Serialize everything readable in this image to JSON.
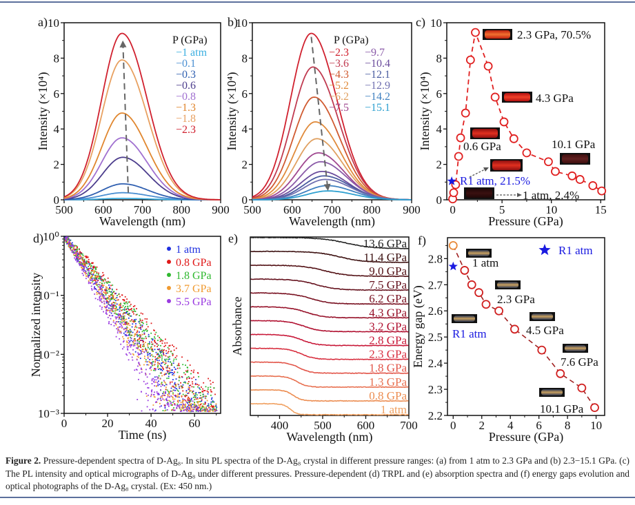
{
  "caption": {
    "label": "Figure 2.",
    "text": "Pressure-dependent spectra of D-Ag₈. In situ PL spectra of the D-Ag₈ crystal in different pressure ranges: (a) from 1 atm to 2.3 GPa and (b) 2.3−15.1 GPa. (c) The PL intensity and optical micrographs of D-Ag₈ under different pressures. Pressure-dependent (d) TRPL and (e) absorption spectra and (f) energy gaps evolution and optical photographs of the D-Ag₈ crystal. (Ex: 450 nm.)"
  },
  "chart_data": [
    {
      "panel": "a)",
      "type": "line",
      "xlabel": "Wavelength (nm)",
      "ylabel": "Intensity (×10⁴)",
      "xlim": [
        500,
        900
      ],
      "ylim": [
        0,
        10
      ],
      "xticks": [
        "500",
        "600",
        "700",
        "800",
        "900"
      ],
      "yticks": [
        "0",
        "2",
        "4",
        "6",
        "8",
        "10"
      ],
      "legend_title": "P (GPa)",
      "legend_position": "top-right",
      "series": [
        {
          "name": "1 atm",
          "color": "#3aaee0",
          "peak_wavelength_nm": 650,
          "peak_intensity": 0.08
        },
        {
          "name": "0.1",
          "color": "#4a8fd2",
          "peak_wavelength_nm": 650,
          "peak_intensity": 0.4
        },
        {
          "name": "0.3",
          "color": "#2f5fb0",
          "peak_wavelength_nm": 650,
          "peak_intensity": 0.9
        },
        {
          "name": "0.6",
          "color": "#4b3c8c",
          "peak_wavelength_nm": 650,
          "peak_intensity": 2.4
        },
        {
          "name": "0.8",
          "color": "#a070d0",
          "peak_wavelength_nm": 648,
          "peak_intensity": 3.5
        },
        {
          "name": "1.3",
          "color": "#e0862e",
          "peak_wavelength_nm": 648,
          "peak_intensity": 4.9
        },
        {
          "name": "1.8",
          "color": "#e8a060",
          "peak_wavelength_nm": 648,
          "peak_intensity": 7.9
        },
        {
          "name": "2.3",
          "color": "#d0202e",
          "peak_wavelength_nm": 648,
          "peak_intensity": 9.4
        }
      ]
    },
    {
      "panel": "b)",
      "type": "line",
      "xlabel": "Wavelength (nm)",
      "ylabel": "Intensity (×10⁴)",
      "xlim": [
        500,
        900
      ],
      "ylim": [
        0,
        10
      ],
      "xticks": [
        "500",
        "600",
        "700",
        "800",
        "900"
      ],
      "yticks": [
        "0",
        "2",
        "4",
        "6",
        "8",
        "10"
      ],
      "legend_title": "P (GPa)",
      "legend_position": "top-right",
      "series": [
        {
          "name": "2.3",
          "color": "#d0202e",
          "peak_wavelength_nm": 648,
          "peak_intensity": 9.4
        },
        {
          "name": "3.6",
          "color": "#c03a50",
          "peak_wavelength_nm": 652,
          "peak_intensity": 7.5
        },
        {
          "name": "4.3",
          "color": "#d05a30",
          "peak_wavelength_nm": 655,
          "peak_intensity": 5.8
        },
        {
          "name": "5.2",
          "color": "#e08a3a",
          "peak_wavelength_nm": 658,
          "peak_intensity": 4.4
        },
        {
          "name": "6.2",
          "color": "#e0a060",
          "peak_wavelength_nm": 662,
          "peak_intensity": 3.45
        },
        {
          "name": "7.5",
          "color": "#a04890",
          "peak_wavelength_nm": 666,
          "peak_intensity": 2.65
        },
        {
          "name": "9.7",
          "color": "#8a5aa8",
          "peak_wavelength_nm": 672,
          "peak_intensity": 2.15
        },
        {
          "name": "10.4",
          "color": "#6a4c9c",
          "peak_wavelength_nm": 675,
          "peak_intensity": 1.6
        },
        {
          "name": "12.1",
          "color": "#4a5ca0",
          "peak_wavelength_nm": 680,
          "peak_intensity": 1.35
        },
        {
          "name": "12.9",
          "color": "#7070b0",
          "peak_wavelength_nm": 683,
          "peak_intensity": 1.15
        },
        {
          "name": "14.2",
          "color": "#3f80c0",
          "peak_wavelength_nm": 688,
          "peak_intensity": 0.8
        },
        {
          "name": "15.1",
          "color": "#2ea0d0",
          "peak_wavelength_nm": 690,
          "peak_intensity": 0.5
        }
      ]
    },
    {
      "panel": "c)",
      "type": "scatter",
      "xlabel": "Pressure (GPa)",
      "ylabel": "Intensity (×10⁴)",
      "xlim": [
        -0.6,
        15.4
      ],
      "ylim": [
        0,
        10
      ],
      "xticks": [
        "0",
        "5",
        "10",
        "15"
      ],
      "yticks": [
        "0",
        "2",
        "4",
        "6",
        "8",
        "10"
      ],
      "color": "#e02020",
      "x": [
        0,
        0.1,
        0.3,
        0.6,
        0.8,
        1.3,
        1.8,
        2.3,
        3.6,
        4.3,
        5.2,
        6.2,
        7.5,
        9.7,
        10.4,
        12.1,
        12.9,
        14.2,
        15.1
      ],
      "y": [
        0.05,
        0.4,
        0.85,
        2.45,
        3.5,
        4.9,
        7.9,
        9.45,
        7.55,
        5.8,
        4.4,
        3.45,
        2.65,
        2.15,
        1.6,
        1.35,
        1.15,
        0.8,
        0.5
      ],
      "star": {
        "x": -0.1,
        "y": 1.05,
        "color": "#1a1ae0"
      },
      "annotations": [
        "2.3 GPa, 70.5%",
        "4.3 GPa",
        "0.6 GPa",
        "10.1 GPa",
        "R1 atm, 21.5%",
        "1 atm, 2.4%"
      ]
    },
    {
      "panel": "d)",
      "type": "scatter",
      "xlabel": "Time (ns)",
      "ylabel": "Normalized intensity",
      "xlim": [
        0,
        72
      ],
      "ylim": [
        0.001,
        1
      ],
      "yscale": "log",
      "xticks": [
        "0",
        "20",
        "40",
        "60"
      ],
      "yticks": [
        "10⁰",
        "10⁻¹",
        "10⁻²",
        "10⁻³"
      ],
      "legend_position": "top-right",
      "series": [
        {
          "name": "1 atm",
          "color": "#1f2fe0",
          "decay_time_ns": 8.6
        },
        {
          "name": "0.8 GPa",
          "color": "#e01818",
          "decay_time_ns": 9.6
        },
        {
          "name": "1.8 GPa",
          "color": "#2fb82f",
          "decay_time_ns": 9.2
        },
        {
          "name": "3.7 GPa",
          "color": "#f09a30",
          "decay_time_ns": 8.0
        },
        {
          "name": "5.5 GPa",
          "color": "#9a3ae0",
          "decay_time_ns": 7.0
        }
      ]
    },
    {
      "panel": "e)",
      "type": "line",
      "xlabel": "Wavelength (nm)",
      "ylabel": "Absorbance",
      "xlim": [
        332,
        700
      ],
      "xticks": [
        "400",
        "500",
        "600",
        "700"
      ],
      "series": [
        {
          "name": "1 atm",
          "color": "#f0a060",
          "edge_nm": 425
        },
        {
          "name": "0.8 GPa",
          "color": "#ec8c50",
          "edge_nm": 432
        },
        {
          "name": "1.3 GPa",
          "color": "#e87050",
          "edge_nm": 440
        },
        {
          "name": "1.8 GPa",
          "color": "#e25448",
          "edge_nm": 445
        },
        {
          "name": "2.3 GPa",
          "color": "#d83040",
          "edge_nm": 450
        },
        {
          "name": "2.8 GPa",
          "color": "#c81838",
          "edge_nm": 452
        },
        {
          "name": "3.2 GPa",
          "color": "#b01030",
          "edge_nm": 456
        },
        {
          "name": "4.3 GPa",
          "color": "#961028",
          "edge_nm": 462
        },
        {
          "name": "6.2 GPa",
          "color": "#781020",
          "edge_nm": 472
        },
        {
          "name": "7.5 GPa",
          "color": "#64101c",
          "edge_nm": 485
        },
        {
          "name": "9.0 GPa",
          "color": "#521014",
          "edge_nm": 505
        },
        {
          "name": "11.4 GPa",
          "color": "#3c1010",
          "edge_nm": 540
        },
        {
          "name": "13.6 GPa",
          "color": "#222222",
          "edge_nm": 555
        }
      ]
    },
    {
      "panel": "f)",
      "type": "scatter",
      "xlabel": "Pressure (GPa)",
      "ylabel": "Energy gap (eV)",
      "xlim": [
        -0.4,
        10.6
      ],
      "ylim": [
        2.2,
        2.88
      ],
      "xticks": [
        "0",
        "2",
        "4",
        "6",
        "8",
        "10"
      ],
      "yticks": [
        "2.2",
        "2.3",
        "2.4",
        "2.5",
        "2.6",
        "2.7",
        "2.8"
      ],
      "color": "#d02020",
      "first_point_color": "#e88a3a",
      "x": [
        0,
        0.8,
        1.3,
        1.8,
        2.3,
        3.2,
        4.3,
        6.2,
        7.5,
        9.0,
        9.9
      ],
      "y": [
        2.85,
        2.755,
        2.7,
        2.67,
        2.625,
        2.6,
        2.53,
        2.45,
        2.36,
        2.305,
        2.23
      ],
      "star": {
        "x": 0,
        "y": 2.77,
        "color": "#1a1ae0"
      },
      "legend": "R1 atm",
      "annotations": [
        "1 atm",
        "2.3 GPa",
        "R1 atm",
        "4.5 GPa",
        "7.6 GPa",
        "10.1 GPa"
      ]
    }
  ]
}
